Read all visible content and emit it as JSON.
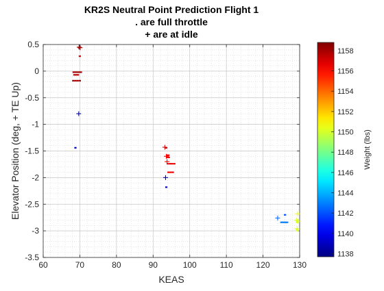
{
  "chart_data": {
    "type": "scatter",
    "title_lines": [
      "KR2S Neutral Point Prediction Flight 1",
      ". are full throttle",
      "+ are at idle"
    ],
    "xlabel": "KEAS",
    "ylabel": "Elevator Position (deg, + TE Up)",
    "xlim": [
      60,
      130
    ],
    "ylim": [
      -3.5,
      0.5
    ],
    "x_ticks": [
      "60",
      "70",
      "80",
      "90",
      "100",
      "110",
      "120",
      "130"
    ],
    "y_ticks": [
      "0.5",
      "0",
      "-0.5",
      "-1",
      "-1.5",
      "-2",
      "-2.5",
      "-3",
      "-3.5"
    ],
    "grid": true,
    "colorbar": {
      "label": "Weight (lbs)",
      "range": [
        1137.7,
        1158.8
      ],
      "ticks": [
        "1138",
        "1140",
        "1142",
        "1144",
        "1146",
        "1148",
        "1150",
        "1152",
        "1154",
        "1156",
        "1158"
      ],
      "colormap": "jet"
    },
    "series": [
      {
        "marker": "dot",
        "points": [
          {
            "x": 69.8,
            "y": 0.44,
            "w": 1158.5
          },
          {
            "x": 70.0,
            "y": 0.28,
            "w": 1157.0
          },
          {
            "x": 68.3,
            "y": -0.02,
            "w": 1158.0
          },
          {
            "x": 68.8,
            "y": -0.02,
            "w": 1158.0
          },
          {
            "x": 69.3,
            "y": -0.02,
            "w": 1158.0
          },
          {
            "x": 69.8,
            "y": -0.02,
            "w": 1158.0
          },
          {
            "x": 70.3,
            "y": -0.02,
            "w": 1158.0
          },
          {
            "x": 68.5,
            "y": -0.07,
            "w": 1157.5
          },
          {
            "x": 69.0,
            "y": -0.07,
            "w": 1157.5
          },
          {
            "x": 69.5,
            "y": -0.07,
            "w": 1157.5
          },
          {
            "x": 68.2,
            "y": -0.18,
            "w": 1158.0
          },
          {
            "x": 68.8,
            "y": -0.18,
            "w": 1158.0
          },
          {
            "x": 69.4,
            "y": -0.18,
            "w": 1158.0
          },
          {
            "x": 70.0,
            "y": -0.18,
            "w": 1158.0
          },
          {
            "x": 68.8,
            "y": -1.44,
            "w": 1139.0
          },
          {
            "x": 93.6,
            "y": -1.44,
            "w": 1157.0
          },
          {
            "x": 93.8,
            "y": -1.58,
            "w": 1156.5
          },
          {
            "x": 94.2,
            "y": -1.58,
            "w": 1156.5
          },
          {
            "x": 93.8,
            "y": -1.62,
            "w": 1156.5
          },
          {
            "x": 94.3,
            "y": -1.62,
            "w": 1156.5
          },
          {
            "x": 94.0,
            "y": -1.74,
            "w": 1156.5
          },
          {
            "x": 94.6,
            "y": -1.74,
            "w": 1156.5
          },
          {
            "x": 95.2,
            "y": -1.74,
            "w": 1156.5
          },
          {
            "x": 95.8,
            "y": -1.74,
            "w": 1156.5
          },
          {
            "x": 94.2,
            "y": -1.9,
            "w": 1156.5
          },
          {
            "x": 94.8,
            "y": -1.9,
            "w": 1156.5
          },
          {
            "x": 95.4,
            "y": -1.9,
            "w": 1156.5
          },
          {
            "x": 93.6,
            "y": -2.18,
            "w": 1140.0
          },
          {
            "x": 125.0,
            "y": -2.84,
            "w": 1143.0
          },
          {
            "x": 125.4,
            "y": -2.84,
            "w": 1143.0
          },
          {
            "x": 125.8,
            "y": -2.84,
            "w": 1143.0
          },
          {
            "x": 126.2,
            "y": -2.84,
            "w": 1143.0
          },
          {
            "x": 126.6,
            "y": -2.84,
            "w": 1143.0
          },
          {
            "x": 126.0,
            "y": -2.7,
            "w": 1142.0
          },
          {
            "x": 129.3,
            "y": -2.8,
            "w": 1150.0
          },
          {
            "x": 129.3,
            "y": -2.84,
            "w": 1150.0
          },
          {
            "x": 129.3,
            "y": -2.98,
            "w": 1150.0
          },
          {
            "x": 129.5,
            "y": -3.0,
            "w": 1150.0
          }
        ]
      },
      {
        "marker": "plus",
        "points": [
          {
            "x": 69.8,
            "y": 0.45,
            "w": 1158.5
          },
          {
            "x": 70.1,
            "y": 0.44,
            "w": 1157.8
          },
          {
            "x": 69.7,
            "y": -0.8,
            "w": 1138.0
          },
          {
            "x": 93.2,
            "y": -1.43,
            "w": 1157.0
          },
          {
            "x": 93.6,
            "y": -1.6,
            "w": 1156.2
          },
          {
            "x": 93.8,
            "y": -1.7,
            "w": 1156.2
          },
          {
            "x": 93.4,
            "y": -2.0,
            "w": 1138.5
          },
          {
            "x": 124.0,
            "y": -2.76,
            "w": 1142.5
          },
          {
            "x": 129.4,
            "y": -2.68,
            "w": 1150.5
          },
          {
            "x": 129.1,
            "y": -2.8,
            "w": 1150.2
          },
          {
            "x": 129.6,
            "y": -2.82,
            "w": 1150.2
          },
          {
            "x": 129.3,
            "y": -2.96,
            "w": 1150.2
          }
        ]
      }
    ]
  }
}
